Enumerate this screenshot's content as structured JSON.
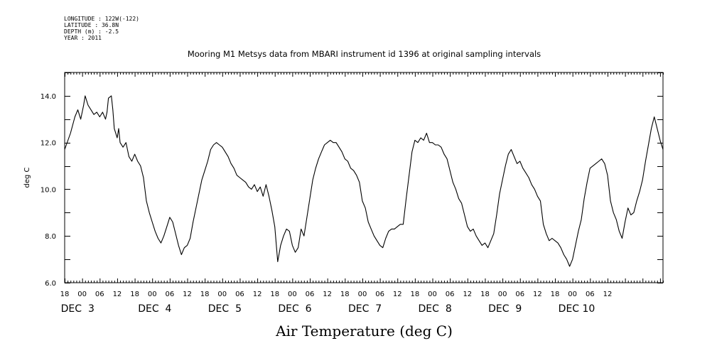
{
  "header": {
    "longitude": "LONGITUDE : 122W(-122)",
    "latitude": "LATITUDE : 36.8N",
    "depth": "DEPTH (m) : -2.5",
    "year": "YEAR : 2011"
  },
  "chart_data": {
    "type": "line",
    "title": "Mooring M1 Metsys data from MBARI instrument id 1396 at original sampling intervals",
    "xlabel": "Air Temperature (deg C)",
    "ylabel": "deg C",
    "ylim": [
      6.0,
      15.0
    ],
    "y_tick_labels": [
      "6.0",
      "8.0",
      "10.0",
      "12.0",
      "14.0"
    ],
    "x_unit": "hours since 2011-12-03 00:00",
    "xlim": [
      -6,
      199
    ],
    "hour_tick_labels": [
      "18",
      "00",
      "06",
      "12",
      "18",
      "00",
      "06",
      "12",
      "18",
      "00",
      "06",
      "12",
      "18",
      "00",
      "06",
      "12",
      "18",
      "00",
      "06",
      "12",
      "18",
      "00",
      "06",
      "12",
      "18",
      "00",
      "06",
      "12",
      "18",
      "00",
      "06",
      "12"
    ],
    "date_labels": [
      "DEC  3",
      "DEC  4",
      "DEC  5",
      "DEC  6",
      "DEC  7",
      "DEC  8",
      "DEC  9",
      "DEC 10"
    ],
    "grid": false,
    "series": [
      {
        "name": "",
        "points": [
          [
            -6,
            11.7
          ],
          [
            -4,
            12.4
          ],
          [
            -2.5,
            13.1
          ],
          [
            -1.5,
            13.4
          ],
          [
            -0.5,
            13.0
          ],
          [
            0.5,
            13.6
          ],
          [
            1,
            14.0
          ],
          [
            2,
            13.6
          ],
          [
            3,
            13.4
          ],
          [
            4,
            13.2
          ],
          [
            5,
            13.3
          ],
          [
            6,
            13.1
          ],
          [
            7,
            13.3
          ],
          [
            8,
            13.0
          ],
          [
            8.5,
            13.3
          ],
          [
            9,
            13.9
          ],
          [
            10,
            14.0
          ],
          [
            10.5,
            13.4
          ],
          [
            11,
            12.6
          ],
          [
            12,
            12.2
          ],
          [
            12.5,
            12.6
          ],
          [
            13,
            12.0
          ],
          [
            14,
            11.8
          ],
          [
            15,
            12.0
          ],
          [
            16,
            11.4
          ],
          [
            17,
            11.2
          ],
          [
            18,
            11.5
          ],
          [
            19,
            11.2
          ],
          [
            20,
            11.0
          ],
          [
            21,
            10.5
          ],
          [
            22,
            9.5
          ],
          [
            23,
            9.0
          ],
          [
            24,
            8.6
          ],
          [
            25,
            8.2
          ],
          [
            26,
            7.9
          ],
          [
            27,
            7.7
          ],
          [
            28,
            8.0
          ],
          [
            29,
            8.4
          ],
          [
            30,
            8.8
          ],
          [
            31,
            8.6
          ],
          [
            32,
            8.1
          ],
          [
            33,
            7.6
          ],
          [
            34,
            7.2
          ],
          [
            35,
            7.5
          ],
          [
            36,
            7.6
          ],
          [
            37,
            7.9
          ],
          [
            38,
            8.6
          ],
          [
            39,
            9.2
          ],
          [
            40,
            9.8
          ],
          [
            41,
            10.4
          ],
          [
            42,
            10.8
          ],
          [
            43,
            11.2
          ],
          [
            44,
            11.7
          ],
          [
            45,
            11.9
          ],
          [
            46,
            12.0
          ],
          [
            47,
            11.9
          ],
          [
            48,
            11.8
          ],
          [
            49,
            11.6
          ],
          [
            50,
            11.4
          ],
          [
            51,
            11.1
          ],
          [
            52,
            10.9
          ],
          [
            53,
            10.6
          ],
          [
            54,
            10.5
          ],
          [
            55,
            10.4
          ],
          [
            56,
            10.3
          ],
          [
            57,
            10.1
          ],
          [
            58,
            10.0
          ],
          [
            59,
            10.2
          ],
          [
            60,
            9.9
          ],
          [
            61,
            10.1
          ],
          [
            62,
            9.7
          ],
          [
            63,
            10.2
          ],
          [
            64,
            9.7
          ],
          [
            65,
            9.1
          ],
          [
            66,
            8.4
          ],
          [
            67,
            6.9
          ],
          [
            68,
            7.6
          ],
          [
            69,
            8.0
          ],
          [
            70,
            8.3
          ],
          [
            71,
            8.2
          ],
          [
            72,
            7.6
          ],
          [
            73,
            7.3
          ],
          [
            74,
            7.5
          ],
          [
            75,
            8.3
          ],
          [
            76,
            8.0
          ],
          [
            77,
            8.8
          ],
          [
            78,
            9.6
          ],
          [
            79,
            10.4
          ],
          [
            80,
            10.9
          ],
          [
            81,
            11.3
          ],
          [
            82,
            11.6
          ],
          [
            83,
            11.9
          ],
          [
            84,
            12.0
          ],
          [
            85,
            12.1
          ],
          [
            86,
            12.0
          ],
          [
            87,
            12.0
          ],
          [
            88,
            11.8
          ],
          [
            89,
            11.6
          ],
          [
            90,
            11.3
          ],
          [
            91,
            11.2
          ],
          [
            92,
            10.9
          ],
          [
            93,
            10.8
          ],
          [
            94,
            10.6
          ],
          [
            95,
            10.3
          ],
          [
            96,
            9.5
          ],
          [
            97,
            9.2
          ],
          [
            98,
            8.6
          ],
          [
            99,
            8.3
          ],
          [
            100,
            8.0
          ],
          [
            101,
            7.8
          ],
          [
            102,
            7.6
          ],
          [
            103,
            7.5
          ],
          [
            104,
            7.9
          ],
          [
            105,
            8.2
          ],
          [
            106,
            8.3
          ],
          [
            107,
            8.3
          ],
          [
            108,
            8.4
          ],
          [
            109,
            8.5
          ],
          [
            110,
            8.5
          ],
          [
            111,
            9.6
          ],
          [
            112,
            10.6
          ],
          [
            113,
            11.6
          ],
          [
            114,
            12.1
          ],
          [
            115,
            12.0
          ],
          [
            116,
            12.2
          ],
          [
            117,
            12.1
          ],
          [
            118,
            12.4
          ],
          [
            119,
            12.0
          ],
          [
            120,
            12.0
          ],
          [
            121,
            11.9
          ],
          [
            122,
            11.9
          ],
          [
            123,
            11.8
          ],
          [
            124,
            11.5
          ],
          [
            125,
            11.3
          ],
          [
            126,
            10.8
          ],
          [
            127,
            10.3
          ],
          [
            128,
            10.0
          ],
          [
            129,
            9.6
          ],
          [
            130,
            9.4
          ],
          [
            131,
            8.9
          ],
          [
            132,
            8.4
          ],
          [
            133,
            8.2
          ],
          [
            134,
            8.3
          ],
          [
            135,
            8.0
          ],
          [
            136,
            7.8
          ],
          [
            137,
            7.6
          ],
          [
            138,
            7.7
          ],
          [
            139,
            7.5
          ],
          [
            140,
            7.8
          ],
          [
            141,
            8.1
          ],
          [
            142,
            8.9
          ],
          [
            143,
            9.8
          ],
          [
            144,
            10.4
          ],
          [
            145,
            11.0
          ],
          [
            146,
            11.5
          ],
          [
            147,
            11.7
          ],
          [
            148,
            11.4
          ],
          [
            149,
            11.1
          ],
          [
            150,
            11.2
          ],
          [
            151,
            10.9
          ],
          [
            152,
            10.7
          ],
          [
            153,
            10.5
          ],
          [
            154,
            10.2
          ],
          [
            155,
            10.0
          ],
          [
            156,
            9.7
          ],
          [
            157,
            9.5
          ],
          [
            158,
            8.5
          ],
          [
            159,
            8.1
          ],
          [
            160,
            7.8
          ],
          [
            161,
            7.9
          ],
          [
            162,
            7.8
          ],
          [
            163,
            7.7
          ],
          [
            164,
            7.5
          ],
          [
            165,
            7.2
          ],
          [
            166,
            7.0
          ],
          [
            167,
            6.7
          ],
          [
            168,
            7.0
          ],
          [
            169,
            7.6
          ],
          [
            170,
            8.2
          ],
          [
            171,
            8.7
          ],
          [
            172,
            9.6
          ],
          [
            173,
            10.3
          ],
          [
            174,
            10.9
          ],
          [
            175,
            11.0
          ],
          [
            176,
            11.1
          ],
          [
            177,
            11.2
          ],
          [
            178,
            11.3
          ],
          [
            179,
            11.1
          ],
          [
            180,
            10.6
          ],
          [
            181,
            9.5
          ],
          [
            182,
            9.0
          ],
          [
            183,
            8.7
          ],
          [
            184,
            8.2
          ],
          [
            185,
            7.9
          ],
          [
            186,
            8.6
          ],
          [
            187,
            9.2
          ],
          [
            188,
            8.9
          ],
          [
            189,
            9.0
          ],
          [
            190,
            9.5
          ],
          [
            191,
            9.9
          ],
          [
            192,
            10.4
          ],
          [
            193,
            11.2
          ],
          [
            194,
            11.9
          ],
          [
            195,
            12.6
          ],
          [
            196,
            13.1
          ],
          [
            197,
            12.6
          ],
          [
            198,
            12.1
          ],
          [
            199,
            11.7
          ]
        ]
      }
    ]
  }
}
